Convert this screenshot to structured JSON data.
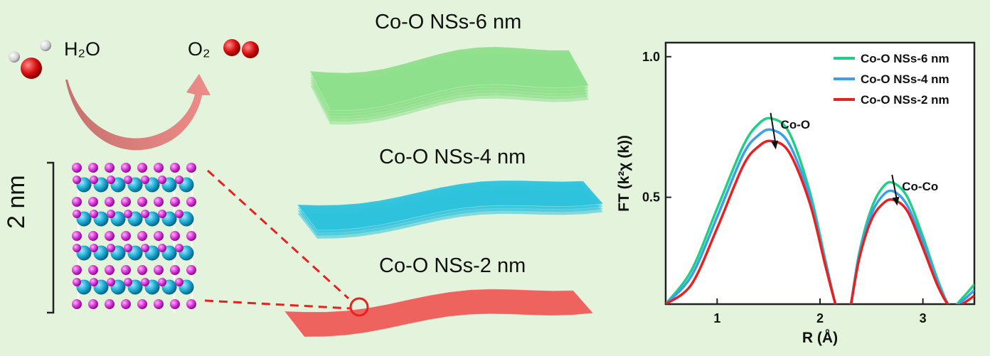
{
  "reaction": {
    "reactant": "H₂O",
    "product": "O₂"
  },
  "structure": {
    "size_label": "2 nm"
  },
  "sheets": [
    {
      "label": "Co-O NSs-6 nm",
      "color": "#8fe08c"
    },
    {
      "label": "Co-O NSs-4 nm",
      "color": "#2ec3dc"
    },
    {
      "label": "Co-O NSs-2 nm",
      "color": "#f05c58"
    }
  ],
  "chart_data": {
    "type": "line",
    "xlabel": "R (Å)",
    "ylabel": "FT (k²χ (k))",
    "xlim": [
      0.5,
      3.5
    ],
    "ylim": [
      0.12,
      1.05
    ],
    "xticks": [
      1,
      2,
      3
    ],
    "yticks": [
      0.5,
      1.0
    ],
    "ytick_labels": [
      "0.5",
      "1.0"
    ],
    "legend_position": "top-right",
    "grid": false,
    "series": [
      {
        "name": "Co-O NSs-6 nm",
        "color": "#1fcf85",
        "x": [
          0.5,
          0.75,
          1.0,
          1.25,
          1.4,
          1.53,
          1.7,
          1.9,
          2.05,
          2.15,
          2.22,
          2.28,
          2.38,
          2.5,
          2.62,
          2.72,
          2.85,
          3.0,
          3.15,
          3.27,
          3.38,
          3.5
        ],
        "y": [
          0.12,
          0.24,
          0.46,
          0.68,
          0.76,
          0.78,
          0.73,
          0.52,
          0.28,
          0.12,
          0.05,
          0.08,
          0.3,
          0.46,
          0.54,
          0.55,
          0.5,
          0.36,
          0.2,
          0.11,
          0.14,
          0.19
        ]
      },
      {
        "name": "Co-O NSs-4 nm",
        "color": "#3a9ff0",
        "x": [
          0.5,
          0.75,
          1.0,
          1.25,
          1.4,
          1.53,
          1.7,
          1.9,
          2.05,
          2.15,
          2.22,
          2.28,
          2.38,
          2.5,
          2.62,
          2.72,
          2.85,
          3.0,
          3.15,
          3.27,
          3.38,
          3.5
        ],
        "y": [
          0.12,
          0.22,
          0.43,
          0.65,
          0.72,
          0.74,
          0.69,
          0.5,
          0.27,
          0.12,
          0.05,
          0.08,
          0.29,
          0.44,
          0.51,
          0.52,
          0.47,
          0.34,
          0.19,
          0.11,
          0.13,
          0.17
        ]
      },
      {
        "name": "Co-O NSs-2 nm",
        "color": "#e82020",
        "x": [
          0.5,
          0.75,
          1.0,
          1.25,
          1.4,
          1.53,
          1.7,
          1.9,
          2.05,
          2.15,
          2.22,
          2.28,
          2.38,
          2.5,
          2.62,
          2.72,
          2.85,
          3.0,
          3.15,
          3.27,
          3.38,
          3.5
        ],
        "y": [
          0.12,
          0.19,
          0.39,
          0.61,
          0.68,
          0.7,
          0.66,
          0.48,
          0.26,
          0.12,
          0.05,
          0.08,
          0.28,
          0.42,
          0.48,
          0.49,
          0.45,
          0.32,
          0.18,
          0.11,
          0.12,
          0.15
        ]
      }
    ],
    "annotations": [
      {
        "text": "Co-O",
        "arrow_from": [
          1.52,
          0.8
        ],
        "arrow_to": [
          1.57,
          0.67
        ]
      },
      {
        "text": "Co-Co",
        "arrow_from": [
          2.7,
          0.58
        ],
        "arrow_to": [
          2.75,
          0.47
        ]
      }
    ]
  }
}
